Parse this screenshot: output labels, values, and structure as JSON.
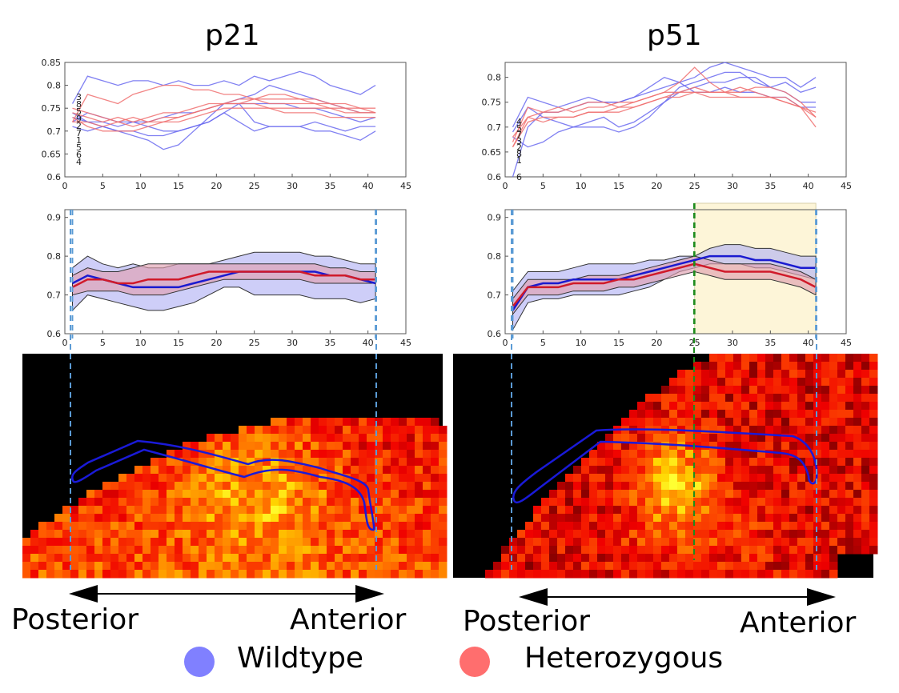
{
  "titles": {
    "left": "p21",
    "right": "p51"
  },
  "directions": {
    "posterior": "Posterior",
    "anterior": "Anterior"
  },
  "legend": [
    {
      "label": "Wildtype",
      "color": "#8080ff"
    },
    {
      "label": "Heterozygous",
      "color": "#ff6e6e"
    }
  ],
  "colors": {
    "wildtype_line": "#6a6af0",
    "het_line": "#f07070",
    "wt_mean": "#1a1ad0",
    "het_mean": "#d01a2a",
    "wt_band": "#b3b3f5",
    "het_band": "#e0a0b0",
    "boundary": "#5b9bd5",
    "split": "#1e8c1e",
    "highlight": "#fdf5d8"
  },
  "chart_data": [
    {
      "id": "p21-individual",
      "type": "line",
      "title": "p21",
      "xlim": [
        0,
        45
      ],
      "ylim": [
        0.6,
        0.85
      ],
      "xticks": [
        0,
        5,
        10,
        15,
        20,
        25,
        30,
        35,
        40,
        45
      ],
      "yticks": [
        0.6,
        0.65,
        0.7,
        0.75,
        0.8,
        0.85
      ],
      "xtick_labels": [
        "0",
        "5",
        "10",
        "15",
        "20",
        "25",
        "30",
        "35",
        "40",
        "45"
      ],
      "ytick_labels": [
        "0.6",
        "0.65",
        "0.7",
        "0.75",
        "0.8",
        "0.85"
      ],
      "start_labels": [
        "3",
        "8",
        "5",
        "9",
        "2",
        "7",
        "1",
        "5",
        "6",
        "4"
      ],
      "x": [
        1,
        3,
        5,
        7,
        9,
        11,
        13,
        15,
        17,
        19,
        21,
        23,
        25,
        27,
        29,
        31,
        33,
        35,
        37,
        39,
        41
      ],
      "series": [
        {
          "group": "wildtype",
          "values": [
            0.76,
            0.82,
            0.81,
            0.8,
            0.81,
            0.81,
            0.8,
            0.81,
            0.8,
            0.8,
            0.81,
            0.8,
            0.82,
            0.81,
            0.82,
            0.83,
            0.82,
            0.8,
            0.79,
            0.78,
            0.8
          ]
        },
        {
          "group": "wildtype",
          "values": [
            0.74,
            0.72,
            0.71,
            0.7,
            0.69,
            0.68,
            0.66,
            0.67,
            0.7,
            0.73,
            0.76,
            0.77,
            0.78,
            0.8,
            0.79,
            0.78,
            0.77,
            0.76,
            0.75,
            0.74,
            0.74
          ]
        },
        {
          "group": "wildtype",
          "values": [
            0.73,
            0.72,
            0.72,
            0.71,
            0.72,
            0.71,
            0.7,
            0.7,
            0.71,
            0.72,
            0.74,
            0.76,
            0.72,
            0.71,
            0.71,
            0.71,
            0.72,
            0.71,
            0.7,
            0.71,
            0.71
          ]
        },
        {
          "group": "wildtype",
          "values": [
            0.71,
            0.7,
            0.71,
            0.7,
            0.7,
            0.69,
            0.69,
            0.7,
            0.71,
            0.72,
            0.74,
            0.72,
            0.7,
            0.71,
            0.71,
            0.71,
            0.7,
            0.7,
            0.69,
            0.68,
            0.7
          ]
        },
        {
          "group": "wildtype",
          "values": [
            0.72,
            0.74,
            0.73,
            0.72,
            0.72,
            0.72,
            0.73,
            0.74,
            0.74,
            0.75,
            0.76,
            0.76,
            0.76,
            0.76,
            0.76,
            0.75,
            0.75,
            0.74,
            0.73,
            0.72,
            0.73
          ]
        },
        {
          "group": "heterozygous",
          "values": [
            0.72,
            0.78,
            0.77,
            0.76,
            0.78,
            0.79,
            0.8,
            0.8,
            0.79,
            0.79,
            0.78,
            0.78,
            0.77,
            0.78,
            0.78,
            0.77,
            0.77,
            0.76,
            0.75,
            0.75,
            0.74
          ]
        },
        {
          "group": "heterozygous",
          "values": [
            0.72,
            0.72,
            0.71,
            0.72,
            0.73,
            0.72,
            0.72,
            0.73,
            0.74,
            0.75,
            0.76,
            0.76,
            0.76,
            0.75,
            0.75,
            0.75,
            0.75,
            0.75,
            0.74,
            0.74,
            0.74
          ]
        },
        {
          "group": "heterozygous",
          "values": [
            0.74,
            0.73,
            0.72,
            0.73,
            0.72,
            0.73,
            0.74,
            0.74,
            0.75,
            0.76,
            0.76,
            0.76,
            0.77,
            0.77,
            0.77,
            0.77,
            0.76,
            0.76,
            0.76,
            0.75,
            0.75
          ]
        },
        {
          "group": "heterozygous",
          "values": [
            0.73,
            0.71,
            0.7,
            0.7,
            0.7,
            0.71,
            0.72,
            0.72,
            0.73,
            0.74,
            0.75,
            0.75,
            0.75,
            0.75,
            0.74,
            0.74,
            0.74,
            0.73,
            0.73,
            0.73,
            0.73
          ]
        },
        {
          "group": "heterozygous",
          "values": [
            0.75,
            0.74,
            0.73,
            0.72,
            0.71,
            0.72,
            0.73,
            0.73,
            0.74,
            0.75,
            0.76,
            0.77,
            0.77,
            0.76,
            0.76,
            0.76,
            0.76,
            0.75,
            0.75,
            0.74,
            0.74
          ]
        }
      ]
    },
    {
      "id": "p51-individual",
      "type": "line",
      "title": "p51",
      "xlim": [
        0,
        45
      ],
      "ylim": [
        0.6,
        0.83
      ],
      "xticks": [
        0,
        5,
        10,
        15,
        20,
        25,
        30,
        35,
        40,
        45
      ],
      "yticks": [
        0.6,
        0.65,
        0.7,
        0.75,
        0.8
      ],
      "xtick_labels": [
        "0",
        "5",
        "10",
        "15",
        "20",
        "25",
        "30",
        "35",
        "40",
        "45"
      ],
      "ytick_labels": [
        "0.6",
        "0.65",
        "0.7",
        "0.75",
        "0.8"
      ],
      "start_labels": [
        "4",
        "5",
        "7",
        "3",
        "2",
        "8",
        "1",
        "6"
      ],
      "x": [
        1,
        3,
        5,
        7,
        9,
        11,
        13,
        15,
        17,
        19,
        21,
        23,
        25,
        27,
        29,
        31,
        33,
        35,
        37,
        39,
        41
      ],
      "series": [
        {
          "group": "wildtype",
          "values": [
            0.6,
            0.7,
            0.73,
            0.73,
            0.74,
            0.75,
            0.75,
            0.75,
            0.76,
            0.77,
            0.78,
            0.79,
            0.8,
            0.82,
            0.83,
            0.82,
            0.81,
            0.8,
            0.8,
            0.78,
            0.8
          ]
        },
        {
          "group": "wildtype",
          "values": [
            0.68,
            0.66,
            0.67,
            0.69,
            0.7,
            0.71,
            0.72,
            0.7,
            0.71,
            0.73,
            0.75,
            0.78,
            0.79,
            0.8,
            0.81,
            0.81,
            0.79,
            0.78,
            0.79,
            0.77,
            0.78
          ]
        },
        {
          "group": "wildtype",
          "values": [
            0.69,
            0.74,
            0.72,
            0.71,
            0.7,
            0.7,
            0.7,
            0.69,
            0.7,
            0.72,
            0.75,
            0.77,
            0.78,
            0.79,
            0.79,
            0.8,
            0.8,
            0.78,
            0.77,
            0.75,
            0.75
          ]
        },
        {
          "group": "wildtype",
          "values": [
            0.7,
            0.76,
            0.75,
            0.74,
            0.75,
            0.76,
            0.75,
            0.75,
            0.76,
            0.78,
            0.8,
            0.79,
            0.77,
            0.77,
            0.78,
            0.77,
            0.77,
            0.76,
            0.76,
            0.74,
            0.74
          ]
        },
        {
          "group": "heterozygous",
          "values": [
            0.66,
            0.72,
            0.73,
            0.74,
            0.73,
            0.74,
            0.74,
            0.75,
            0.75,
            0.76,
            0.77,
            0.79,
            0.82,
            0.79,
            0.77,
            0.77,
            0.78,
            0.78,
            0.77,
            0.75,
            0.72
          ]
        },
        {
          "group": "heterozygous",
          "values": [
            0.67,
            0.74,
            0.73,
            0.73,
            0.74,
            0.75,
            0.75,
            0.74,
            0.75,
            0.76,
            0.77,
            0.77,
            0.78,
            0.77,
            0.77,
            0.78,
            0.77,
            0.76,
            0.76,
            0.74,
            0.73
          ]
        },
        {
          "group": "heterozygous",
          "values": [
            0.68,
            0.72,
            0.71,
            0.72,
            0.72,
            0.73,
            0.73,
            0.73,
            0.74,
            0.75,
            0.76,
            0.76,
            0.77,
            0.76,
            0.76,
            0.76,
            0.76,
            0.76,
            0.75,
            0.74,
            0.72
          ]
        },
        {
          "group": "heterozygous",
          "values": [
            0.66,
            0.71,
            0.72,
            0.72,
            0.72,
            0.73,
            0.73,
            0.74,
            0.74,
            0.75,
            0.76,
            0.77,
            0.77,
            0.77,
            0.77,
            0.76,
            0.76,
            0.76,
            0.75,
            0.74,
            0.7
          ]
        }
      ]
    },
    {
      "id": "p21-mean",
      "type": "area",
      "xlim": [
        0,
        45
      ],
      "ylim": [
        0.6,
        0.92
      ],
      "xticks": [
        0,
        5,
        10,
        15,
        20,
        25,
        30,
        35,
        40,
        45
      ],
      "yticks": [
        0.6,
        0.7,
        0.8,
        0.9
      ],
      "xtick_labels": [
        "0",
        "5",
        "10",
        "15",
        "20",
        "25",
        "30",
        "35",
        "40",
        "45"
      ],
      "ytick_labels": [
        "0.6",
        "0.7",
        "0.8",
        "0.9"
      ],
      "boundaries": [
        1,
        41
      ],
      "x": [
        1,
        3,
        5,
        7,
        9,
        11,
        13,
        15,
        17,
        19,
        21,
        23,
        25,
        27,
        29,
        31,
        33,
        35,
        37,
        39,
        41
      ],
      "series": [
        {
          "group": "wildtype",
          "mean": [
            0.73,
            0.75,
            0.74,
            0.73,
            0.72,
            0.72,
            0.72,
            0.72,
            0.73,
            0.74,
            0.75,
            0.76,
            0.76,
            0.76,
            0.76,
            0.76,
            0.76,
            0.75,
            0.75,
            0.74,
            0.73
          ],
          "upper": [
            0.77,
            0.8,
            0.78,
            0.77,
            0.78,
            0.77,
            0.77,
            0.78,
            0.78,
            0.78,
            0.79,
            0.8,
            0.81,
            0.81,
            0.81,
            0.81,
            0.8,
            0.8,
            0.79,
            0.78,
            0.78
          ],
          "lower": [
            0.66,
            0.7,
            0.69,
            0.68,
            0.67,
            0.66,
            0.66,
            0.67,
            0.68,
            0.7,
            0.72,
            0.72,
            0.7,
            0.7,
            0.7,
            0.7,
            0.69,
            0.69,
            0.69,
            0.68,
            0.69
          ]
        },
        {
          "group": "heterozygous",
          "mean": [
            0.72,
            0.74,
            0.74,
            0.73,
            0.73,
            0.74,
            0.74,
            0.74,
            0.75,
            0.76,
            0.76,
            0.76,
            0.76,
            0.76,
            0.76,
            0.76,
            0.75,
            0.75,
            0.75,
            0.74,
            0.74
          ],
          "upper": [
            0.75,
            0.77,
            0.76,
            0.76,
            0.77,
            0.78,
            0.78,
            0.78,
            0.78,
            0.78,
            0.78,
            0.78,
            0.78,
            0.78,
            0.78,
            0.78,
            0.78,
            0.77,
            0.77,
            0.76,
            0.76
          ],
          "lower": [
            0.7,
            0.71,
            0.71,
            0.71,
            0.7,
            0.7,
            0.7,
            0.71,
            0.72,
            0.73,
            0.74,
            0.74,
            0.74,
            0.74,
            0.74,
            0.74,
            0.73,
            0.73,
            0.73,
            0.73,
            0.73
          ]
        }
      ]
    },
    {
      "id": "p51-mean",
      "type": "area",
      "xlim": [
        0,
        45
      ],
      "ylim": [
        0.6,
        0.92
      ],
      "xticks": [
        0,
        5,
        10,
        15,
        20,
        25,
        30,
        35,
        40,
        45
      ],
      "yticks": [
        0.6,
        0.7,
        0.8,
        0.9
      ],
      "xtick_labels": [
        "0",
        "5",
        "10",
        "15",
        "20",
        "25",
        "30",
        "35",
        "40",
        "45"
      ],
      "ytick_labels": [
        "0.6",
        "0.7",
        "0.8",
        "0.9"
      ],
      "boundaries": [
        1,
        41
      ],
      "split_x": 25,
      "highlight_range": [
        25,
        41
      ],
      "x": [
        1,
        3,
        5,
        7,
        9,
        11,
        13,
        15,
        17,
        19,
        21,
        23,
        25,
        27,
        29,
        31,
        33,
        35,
        37,
        39,
        41
      ],
      "series": [
        {
          "group": "wildtype",
          "mean": [
            0.66,
            0.72,
            0.73,
            0.73,
            0.74,
            0.74,
            0.74,
            0.74,
            0.75,
            0.76,
            0.77,
            0.78,
            0.79,
            0.8,
            0.8,
            0.8,
            0.79,
            0.79,
            0.78,
            0.77,
            0.77
          ],
          "upper": [
            0.71,
            0.76,
            0.76,
            0.76,
            0.77,
            0.78,
            0.78,
            0.78,
            0.78,
            0.79,
            0.79,
            0.8,
            0.8,
            0.82,
            0.83,
            0.83,
            0.82,
            0.82,
            0.81,
            0.8,
            0.8
          ],
          "lower": [
            0.61,
            0.68,
            0.69,
            0.69,
            0.7,
            0.7,
            0.7,
            0.7,
            0.71,
            0.72,
            0.74,
            0.76,
            0.77,
            0.78,
            0.78,
            0.78,
            0.77,
            0.77,
            0.76,
            0.75,
            0.74
          ]
        },
        {
          "group": "heterozygous",
          "mean": [
            0.67,
            0.72,
            0.72,
            0.72,
            0.73,
            0.73,
            0.73,
            0.74,
            0.74,
            0.75,
            0.76,
            0.77,
            0.78,
            0.77,
            0.76,
            0.76,
            0.76,
            0.76,
            0.75,
            0.74,
            0.72
          ],
          "upper": [
            0.69,
            0.74,
            0.74,
            0.74,
            0.74,
            0.75,
            0.75,
            0.75,
            0.76,
            0.77,
            0.78,
            0.79,
            0.8,
            0.79,
            0.78,
            0.78,
            0.78,
            0.78,
            0.77,
            0.76,
            0.74
          ],
          "lower": [
            0.65,
            0.7,
            0.7,
            0.7,
            0.71,
            0.71,
            0.71,
            0.72,
            0.72,
            0.73,
            0.74,
            0.75,
            0.76,
            0.75,
            0.74,
            0.74,
            0.74,
            0.74,
            0.73,
            0.72,
            0.7
          ]
        }
      ]
    }
  ]
}
